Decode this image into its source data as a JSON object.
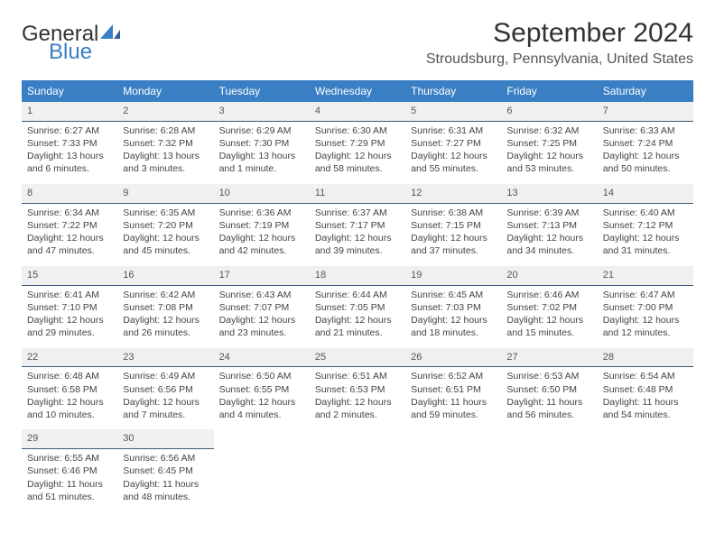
{
  "logo": {
    "word1": "General",
    "word2": "Blue"
  },
  "title": "September 2024",
  "location": "Stroudsburg, Pennsylvania, United States",
  "colors": {
    "header_bg": "#3a7fc4",
    "header_text": "#ffffff",
    "daynum_bg": "#eef0f2",
    "daynum_border": "#3a5a7a",
    "body_text": "#444444"
  },
  "day_names": [
    "Sunday",
    "Monday",
    "Tuesday",
    "Wednesday",
    "Thursday",
    "Friday",
    "Saturday"
  ],
  "weeks": [
    [
      {
        "n": "1",
        "sr": "Sunrise: 6:27 AM",
        "ss": "Sunset: 7:33 PM",
        "dl1": "Daylight: 13 hours",
        "dl2": "and 6 minutes."
      },
      {
        "n": "2",
        "sr": "Sunrise: 6:28 AM",
        "ss": "Sunset: 7:32 PM",
        "dl1": "Daylight: 13 hours",
        "dl2": "and 3 minutes."
      },
      {
        "n": "3",
        "sr": "Sunrise: 6:29 AM",
        "ss": "Sunset: 7:30 PM",
        "dl1": "Daylight: 13 hours",
        "dl2": "and 1 minute."
      },
      {
        "n": "4",
        "sr": "Sunrise: 6:30 AM",
        "ss": "Sunset: 7:29 PM",
        "dl1": "Daylight: 12 hours",
        "dl2": "and 58 minutes."
      },
      {
        "n": "5",
        "sr": "Sunrise: 6:31 AM",
        "ss": "Sunset: 7:27 PM",
        "dl1": "Daylight: 12 hours",
        "dl2": "and 55 minutes."
      },
      {
        "n": "6",
        "sr": "Sunrise: 6:32 AM",
        "ss": "Sunset: 7:25 PM",
        "dl1": "Daylight: 12 hours",
        "dl2": "and 53 minutes."
      },
      {
        "n": "7",
        "sr": "Sunrise: 6:33 AM",
        "ss": "Sunset: 7:24 PM",
        "dl1": "Daylight: 12 hours",
        "dl2": "and 50 minutes."
      }
    ],
    [
      {
        "n": "8",
        "sr": "Sunrise: 6:34 AM",
        "ss": "Sunset: 7:22 PM",
        "dl1": "Daylight: 12 hours",
        "dl2": "and 47 minutes."
      },
      {
        "n": "9",
        "sr": "Sunrise: 6:35 AM",
        "ss": "Sunset: 7:20 PM",
        "dl1": "Daylight: 12 hours",
        "dl2": "and 45 minutes."
      },
      {
        "n": "10",
        "sr": "Sunrise: 6:36 AM",
        "ss": "Sunset: 7:19 PM",
        "dl1": "Daylight: 12 hours",
        "dl2": "and 42 minutes."
      },
      {
        "n": "11",
        "sr": "Sunrise: 6:37 AM",
        "ss": "Sunset: 7:17 PM",
        "dl1": "Daylight: 12 hours",
        "dl2": "and 39 minutes."
      },
      {
        "n": "12",
        "sr": "Sunrise: 6:38 AM",
        "ss": "Sunset: 7:15 PM",
        "dl1": "Daylight: 12 hours",
        "dl2": "and 37 minutes."
      },
      {
        "n": "13",
        "sr": "Sunrise: 6:39 AM",
        "ss": "Sunset: 7:13 PM",
        "dl1": "Daylight: 12 hours",
        "dl2": "and 34 minutes."
      },
      {
        "n": "14",
        "sr": "Sunrise: 6:40 AM",
        "ss": "Sunset: 7:12 PM",
        "dl1": "Daylight: 12 hours",
        "dl2": "and 31 minutes."
      }
    ],
    [
      {
        "n": "15",
        "sr": "Sunrise: 6:41 AM",
        "ss": "Sunset: 7:10 PM",
        "dl1": "Daylight: 12 hours",
        "dl2": "and 29 minutes."
      },
      {
        "n": "16",
        "sr": "Sunrise: 6:42 AM",
        "ss": "Sunset: 7:08 PM",
        "dl1": "Daylight: 12 hours",
        "dl2": "and 26 minutes."
      },
      {
        "n": "17",
        "sr": "Sunrise: 6:43 AM",
        "ss": "Sunset: 7:07 PM",
        "dl1": "Daylight: 12 hours",
        "dl2": "and 23 minutes."
      },
      {
        "n": "18",
        "sr": "Sunrise: 6:44 AM",
        "ss": "Sunset: 7:05 PM",
        "dl1": "Daylight: 12 hours",
        "dl2": "and 21 minutes."
      },
      {
        "n": "19",
        "sr": "Sunrise: 6:45 AM",
        "ss": "Sunset: 7:03 PM",
        "dl1": "Daylight: 12 hours",
        "dl2": "and 18 minutes."
      },
      {
        "n": "20",
        "sr": "Sunrise: 6:46 AM",
        "ss": "Sunset: 7:02 PM",
        "dl1": "Daylight: 12 hours",
        "dl2": "and 15 minutes."
      },
      {
        "n": "21",
        "sr": "Sunrise: 6:47 AM",
        "ss": "Sunset: 7:00 PM",
        "dl1": "Daylight: 12 hours",
        "dl2": "and 12 minutes."
      }
    ],
    [
      {
        "n": "22",
        "sr": "Sunrise: 6:48 AM",
        "ss": "Sunset: 6:58 PM",
        "dl1": "Daylight: 12 hours",
        "dl2": "and 10 minutes."
      },
      {
        "n": "23",
        "sr": "Sunrise: 6:49 AM",
        "ss": "Sunset: 6:56 PM",
        "dl1": "Daylight: 12 hours",
        "dl2": "and 7 minutes."
      },
      {
        "n": "24",
        "sr": "Sunrise: 6:50 AM",
        "ss": "Sunset: 6:55 PM",
        "dl1": "Daylight: 12 hours",
        "dl2": "and 4 minutes."
      },
      {
        "n": "25",
        "sr": "Sunrise: 6:51 AM",
        "ss": "Sunset: 6:53 PM",
        "dl1": "Daylight: 12 hours",
        "dl2": "and 2 minutes."
      },
      {
        "n": "26",
        "sr": "Sunrise: 6:52 AM",
        "ss": "Sunset: 6:51 PM",
        "dl1": "Daylight: 11 hours",
        "dl2": "and 59 minutes."
      },
      {
        "n": "27",
        "sr": "Sunrise: 6:53 AM",
        "ss": "Sunset: 6:50 PM",
        "dl1": "Daylight: 11 hours",
        "dl2": "and 56 minutes."
      },
      {
        "n": "28",
        "sr": "Sunrise: 6:54 AM",
        "ss": "Sunset: 6:48 PM",
        "dl1": "Daylight: 11 hours",
        "dl2": "and 54 minutes."
      }
    ],
    [
      {
        "n": "29",
        "sr": "Sunrise: 6:55 AM",
        "ss": "Sunset: 6:46 PM",
        "dl1": "Daylight: 11 hours",
        "dl2": "and 51 minutes."
      },
      {
        "n": "30",
        "sr": "Sunrise: 6:56 AM",
        "ss": "Sunset: 6:45 PM",
        "dl1": "Daylight: 11 hours",
        "dl2": "and 48 minutes."
      },
      {
        "empty": true
      },
      {
        "empty": true
      },
      {
        "empty": true
      },
      {
        "empty": true
      },
      {
        "empty": true
      }
    ]
  ]
}
